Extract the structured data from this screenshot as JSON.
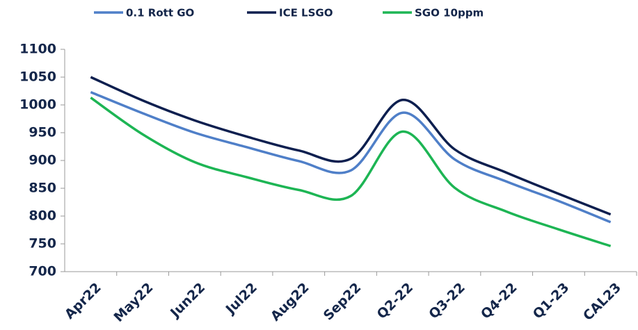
{
  "chart_data": {
    "type": "line",
    "categories": [
      "Apr22",
      "May22",
      "Jun22",
      "Jul22",
      "Aug22",
      "Sep22",
      "Q2-22",
      "Q3-22",
      "Q4-22",
      "Q1-23",
      "CAL23"
    ],
    "series": [
      {
        "name": "0.1 Rott GO",
        "color": "#4f7fc8",
        "values": [
          1023,
          985,
          950,
          924,
          899,
          882,
          986,
          902,
          862,
          827,
          789
        ]
      },
      {
        "name": "ICE LSGO",
        "color": "#0d1f4f",
        "values": [
          1050,
          1008,
          972,
          943,
          918,
          903,
          1009,
          920,
          878,
          840,
          803
        ]
      },
      {
        "name": "SGO 10ppm",
        "color": "#1db554",
        "values": [
          1013,
          947,
          897,
          870,
          847,
          836,
          952,
          851,
          808,
          776,
          746
        ]
      }
    ],
    "ylim": [
      700,
      1100
    ],
    "yticks": [
      700,
      750,
      800,
      850,
      900,
      950,
      1000,
      1050,
      1100
    ],
    "grid": false
  }
}
